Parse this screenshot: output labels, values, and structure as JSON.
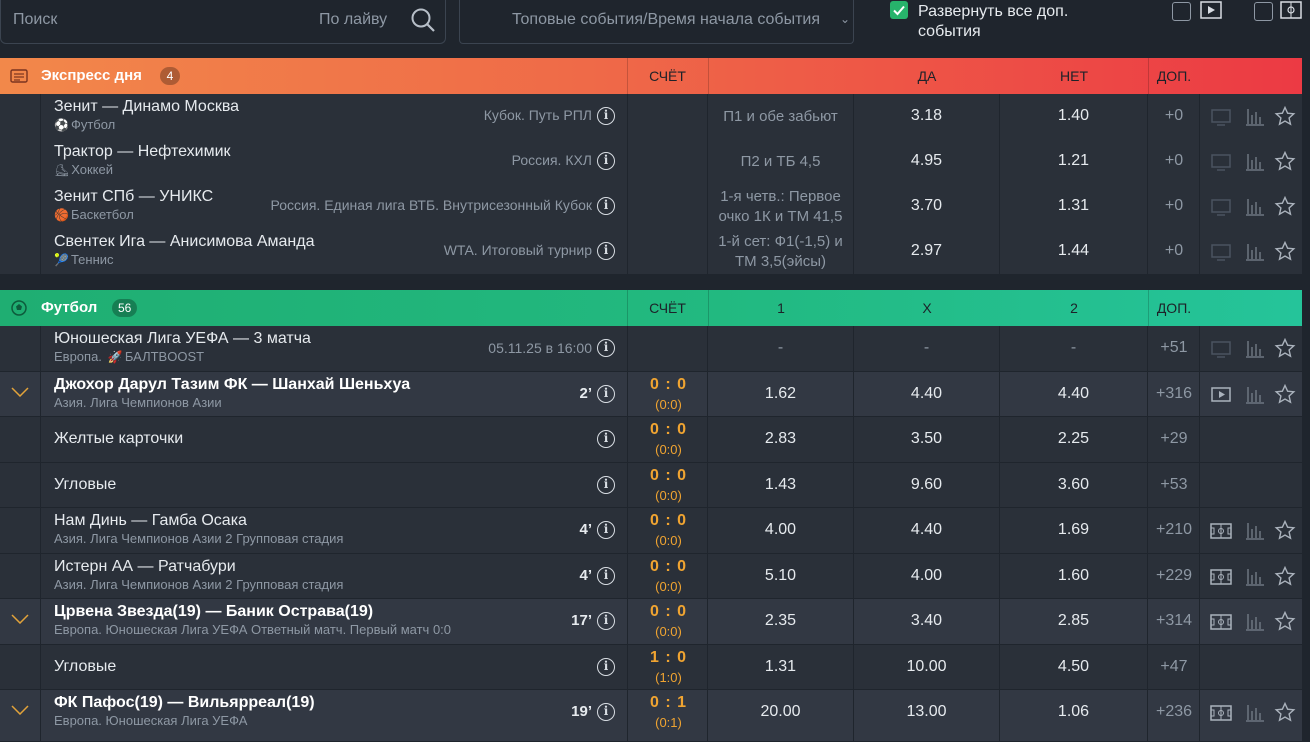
{
  "search": {
    "placeholder": "Поиск",
    "live_label": "По лайву"
  },
  "sort": {
    "value": "Топовые события/Время начала события"
  },
  "expand": {
    "label": "Развернуть все доп. события",
    "checked": true
  },
  "express": {
    "title": "Экспресс дня",
    "count": "4",
    "col_score": "СЧЁТ",
    "col_yes": "ДА",
    "col_no": "НЕТ",
    "col_more": "ДОП.",
    "rows": [
      {
        "name": "Зенит — Динамо Москва",
        "sport_icon": "⚽",
        "sport": "Футбол",
        "league": "Кубок. Путь РПЛ",
        "market": "П1 и обе забьют",
        "yes": "3.18",
        "no": "1.40",
        "more": "+0"
      },
      {
        "name": "Трактор — Нефтехимик",
        "sport_icon": "⛸",
        "sport": "Хоккей",
        "league": "Россия. КХЛ",
        "market": "П2 и ТБ 4,5",
        "yes": "4.95",
        "no": "1.21",
        "more": "+0"
      },
      {
        "name": "Зенит СПб — УНИКС",
        "sport_icon": "🏀",
        "sport": "Баскетбол",
        "league": "Россия. Единая лига ВТБ. Внутрисезонный Кубок",
        "market": "1-я четв.: Первое очко 1К и ТМ 41,5",
        "yes": "3.70",
        "no": "1.31",
        "more": "+0"
      },
      {
        "name": "Свентек Ига — Анисимова Аманда",
        "sport_icon": "🎾",
        "sport": "Теннис",
        "league": "WTA. Итоговый турнир",
        "market": "1-й сет: Ф1(-1,5) и ТМ 3,5(эйсы)",
        "yes": "2.97",
        "no": "1.44",
        "more": "+0"
      }
    ]
  },
  "football": {
    "title": "Футбол",
    "count": "56",
    "col_score": "СЧЁТ",
    "col_1": "1",
    "col_x": "X",
    "col_2": "2",
    "col_more": "ДОП.",
    "rows": [
      {
        "name": "Юношеская Лига УЕФА — 3 матча",
        "sub": "Европа.",
        "boost_icon": "🚀",
        "boost": "БАЛТBOOST",
        "time": "05.11.25 в 16:00",
        "score": "",
        "score_ht": "",
        "o1": "-",
        "ox": "-",
        "o2": "-",
        "more": "+51"
      },
      {
        "name": "Джохор Дарул Тазим ФК — Шанхай Шеньхуа",
        "sub": "Азия. Лига Чемпионов Азии",
        "time": "2’",
        "score": "0 : 0",
        "score_ht": "(0:0)",
        "o1": "1.62",
        "ox": "4.40",
        "o2": "4.40",
        "more": "+316"
      },
      {
        "name": "Желтые карточки",
        "sub": "",
        "time": "",
        "score": "0 : 0",
        "score_ht": "(0:0)",
        "o1": "2.83",
        "ox": "3.50",
        "o2": "2.25",
        "more": "+29"
      },
      {
        "name": "Угловые",
        "sub": "",
        "time": "",
        "score": "0 : 0",
        "score_ht": "(0:0)",
        "o1": "1.43",
        "ox": "9.60",
        "o2": "3.60",
        "more": "+53"
      },
      {
        "name": "Нам Динь — Гамба Осака",
        "sub": "Азия. Лига Чемпионов Азии 2 Групповая стадия",
        "time": "4’",
        "score": "0 : 0",
        "score_ht": "(0:0)",
        "o1": "4.00",
        "ox": "4.40",
        "o2": "1.69",
        "more": "+210"
      },
      {
        "name": "Истерн АА — Ратчабури",
        "sub": "Азия. Лига Чемпионов Азии 2 Групповая стадия",
        "time": "4’",
        "score": "0 : 0",
        "score_ht": "(0:0)",
        "o1": "5.10",
        "ox": "4.00",
        "o2": "1.60",
        "more": "+229"
      },
      {
        "name": "Црвена Звезда(19) — Баник Острава(19)",
        "sub": "Европа. Юношеская Лига УЕФА Ответный матч. Первый матч 0:0",
        "time": "17’",
        "score": "0 : 0",
        "score_ht": "(0:0)",
        "o1": "2.35",
        "ox": "3.40",
        "o2": "2.85",
        "more": "+314"
      },
      {
        "name": "Угловые",
        "sub": "",
        "time": "",
        "score": "1 : 0",
        "score_ht": "(1:0)",
        "o1": "1.31",
        "ox": "10.00",
        "o2": "4.50",
        "more": "+47"
      },
      {
        "name": "ФК Пафос(19) — Вильярреал(19)",
        "sub": "Европа. Юношеская Лига УЕФА",
        "time": "19’",
        "score": "0 : 1",
        "score_ht": "(0:1)",
        "o1": "20.00",
        "ox": "13.00",
        "o2": "1.06",
        "more": "+236"
      }
    ]
  },
  "colors": {
    "express_start": "#f2884a",
    "express_end": "#ec3a44",
    "football": "#22b980",
    "score": "#f0a431",
    "row_bg": "#2a3039"
  }
}
